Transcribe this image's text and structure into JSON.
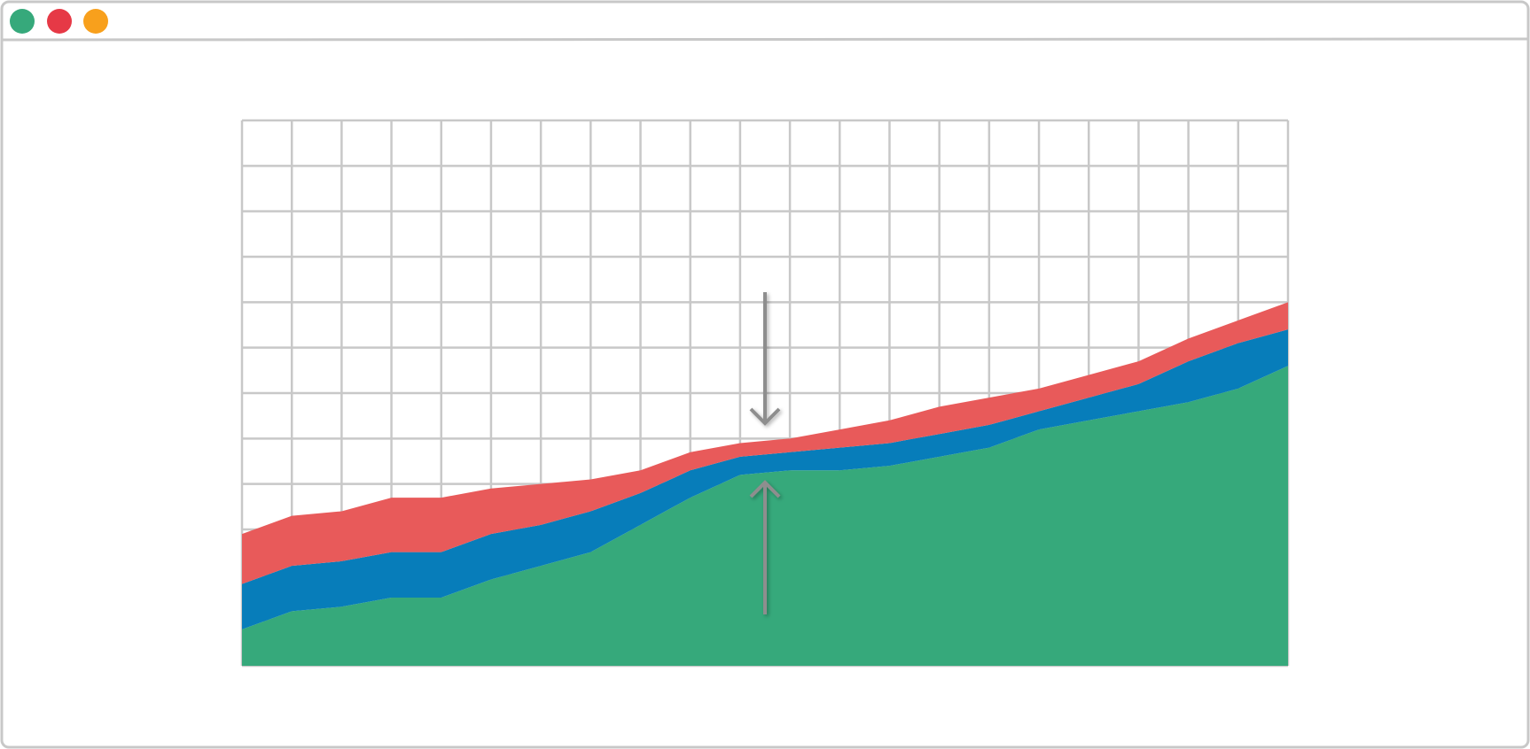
{
  "chart_data": {
    "type": "area",
    "stacked": true,
    "grid": true,
    "x": [
      0,
      1,
      2,
      3,
      4,
      5,
      6,
      7,
      8,
      9,
      10,
      11,
      12,
      13,
      14,
      15,
      16,
      17,
      18,
      19,
      20,
      21
    ],
    "xlim": [
      0,
      21
    ],
    "ylim": [
      0,
      12
    ],
    "series": [
      {
        "color": "#36a97b",
        "values": [
          0.8,
          1.2,
          1.3,
          1.5,
          1.5,
          1.9,
          2.2,
          2.5,
          3.1,
          3.7,
          4.2,
          4.3,
          4.3,
          4.4,
          4.6,
          4.8,
          5.2,
          5.4,
          5.6,
          5.8,
          6.1,
          6.6
        ]
      },
      {
        "color": "#077dba",
        "values": [
          1.0,
          1.0,
          1.0,
          1.0,
          1.0,
          1.0,
          0.9,
          0.9,
          0.7,
          0.6,
          0.4,
          0.4,
          0.5,
          0.5,
          0.5,
          0.5,
          0.4,
          0.5,
          0.6,
          0.9,
          1.0,
          0.8
        ]
      },
      {
        "color": "#e85a5a",
        "values": [
          1.1,
          1.1,
          1.1,
          1.2,
          1.2,
          1.0,
          0.9,
          0.7,
          0.5,
          0.4,
          0.3,
          0.3,
          0.4,
          0.5,
          0.6,
          0.6,
          0.5,
          0.5,
          0.5,
          0.5,
          0.5,
          0.6
        ]
      }
    ]
  }
}
